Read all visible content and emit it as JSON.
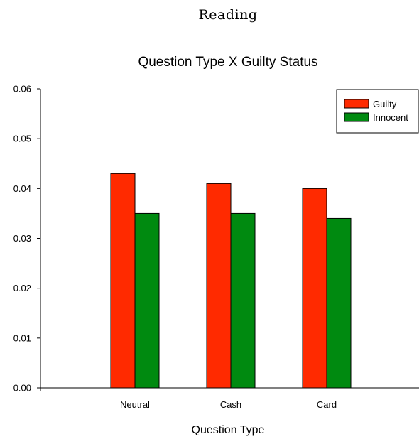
{
  "page": {
    "heading": "Reading"
  },
  "chart_data": {
    "type": "bar",
    "title": "Question Type X Guilty Status",
    "xlabel": "Question Type",
    "ylabel": "",
    "categories": [
      "Neutral",
      "Cash",
      "Card"
    ],
    "series": [
      {
        "name": "Guilty",
        "color": "#ff2a00",
        "values": [
          0.043,
          0.041,
          0.04
        ]
      },
      {
        "name": "Innocent",
        "color": "#008a10",
        "values": [
          0.035,
          0.035,
          0.034
        ]
      }
    ],
    "ylim": [
      0,
      0.06
    ],
    "yticks": [
      "0.00",
      "0.01",
      "0.02",
      "0.03",
      "0.04",
      "0.05",
      "0.06"
    ],
    "grid": false,
    "legend_position": "top-right"
  }
}
